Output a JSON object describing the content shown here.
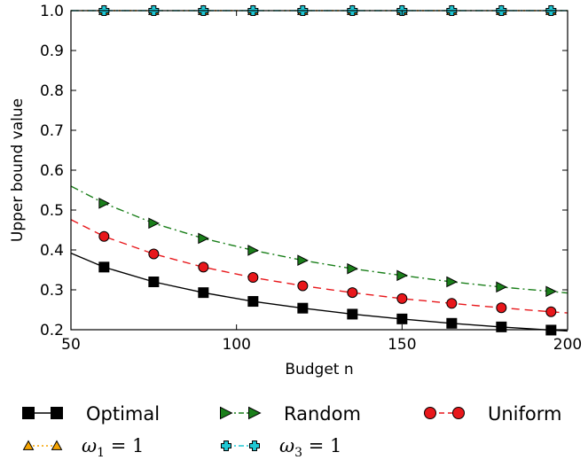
{
  "chart_data": {
    "type": "line",
    "title": "",
    "xlabel": "Budget n",
    "ylabel": "Upper bound value",
    "xlim": [
      50,
      200
    ],
    "ylim": [
      0.2,
      1.0
    ],
    "xticks": [
      50,
      100,
      150,
      200
    ],
    "xtick_labels": [
      "50",
      "100",
      "150",
      "200"
    ],
    "yticks": [
      0.2,
      0.3,
      0.4,
      0.5,
      0.6,
      0.7,
      0.8,
      0.9,
      1.0
    ],
    "ytick_labels": [
      "0.2",
      "0.3",
      "0.4",
      "0.5",
      "0.6",
      "0.7",
      "0.8",
      "0.9",
      "1.0"
    ],
    "grid": false,
    "legend_placement": "below",
    "series": [
      {
        "name": "Optimal",
        "color": "#000000",
        "marker": "square",
        "line_style": "solid",
        "curve": {
          "x": [
            50,
            60,
            75,
            90,
            105,
            120,
            135,
            150,
            165,
            180,
            195,
            200
          ],
          "y": [
            0.392,
            0.357,
            0.32,
            0.293,
            0.271,
            0.254,
            0.239,
            0.227,
            0.216,
            0.207,
            0.199,
            0.197
          ]
        },
        "points": {
          "x": [
            60,
            75,
            90,
            105,
            120,
            135,
            150,
            165,
            180,
            195
          ],
          "y": [
            0.357,
            0.32,
            0.293,
            0.271,
            0.254,
            0.239,
            0.227,
            0.216,
            0.207,
            0.199
          ]
        }
      },
      {
        "name": "Random",
        "color": "#1a7f1a",
        "marker": "triangle-right",
        "line_style": "dashdot",
        "curve": {
          "x": [
            50,
            60,
            75,
            90,
            105,
            120,
            135,
            150,
            165,
            180,
            195,
            200
          ],
          "y": [
            0.56,
            0.517,
            0.467,
            0.429,
            0.399,
            0.374,
            0.353,
            0.336,
            0.32,
            0.307,
            0.296,
            0.292
          ]
        },
        "points": {
          "x": [
            60,
            75,
            90,
            105,
            120,
            135,
            150,
            165,
            180,
            195
          ],
          "y": [
            0.517,
            0.467,
            0.429,
            0.399,
            0.374,
            0.353,
            0.336,
            0.32,
            0.307,
            0.296
          ]
        }
      },
      {
        "name": "Uniform",
        "color": "#e8171b",
        "marker": "circle",
        "line_style": "dashed",
        "curve": {
          "x": [
            50,
            60,
            75,
            90,
            105,
            120,
            135,
            150,
            165,
            180,
            195,
            200
          ],
          "y": [
            0.476,
            0.434,
            0.39,
            0.357,
            0.331,
            0.31,
            0.293,
            0.278,
            0.266,
            0.255,
            0.245,
            0.242
          ]
        },
        "points": {
          "x": [
            60,
            75,
            90,
            105,
            120,
            135,
            150,
            165,
            180,
            195
          ],
          "y": [
            0.434,
            0.39,
            0.357,
            0.331,
            0.31,
            0.293,
            0.278,
            0.266,
            0.255,
            0.245
          ]
        }
      },
      {
        "name": "ω₁ = 1",
        "name_symbol": "ω",
        "name_subscript": "1",
        "name_rest": " = 1",
        "color": "#f5a300",
        "marker": "triangle-up",
        "line_style": "dotted",
        "curve": {
          "x": [
            50,
            200
          ],
          "y": [
            1.0,
            1.0
          ]
        },
        "points": {
          "x": [
            60,
            75,
            90,
            105,
            120,
            135,
            150,
            165,
            180,
            195
          ],
          "y": [
            1.0,
            1.0,
            1.0,
            1.0,
            1.0,
            1.0,
            1.0,
            1.0,
            1.0,
            1.0
          ]
        }
      },
      {
        "name": "ω₃ = 1",
        "name_symbol": "ω",
        "name_subscript": "3",
        "name_rest": " = 1",
        "color": "#1fc7d4",
        "marker": "plus",
        "line_style": "dashdot",
        "curve": {
          "x": [
            50,
            200
          ],
          "y": [
            1.0,
            1.0
          ]
        },
        "points": {
          "x": [
            60,
            75,
            90,
            105,
            120,
            135,
            150,
            165,
            180,
            195
          ],
          "y": [
            1.0,
            1.0,
            1.0,
            1.0,
            1.0,
            1.0,
            1.0,
            1.0,
            1.0,
            1.0
          ]
        }
      }
    ]
  }
}
